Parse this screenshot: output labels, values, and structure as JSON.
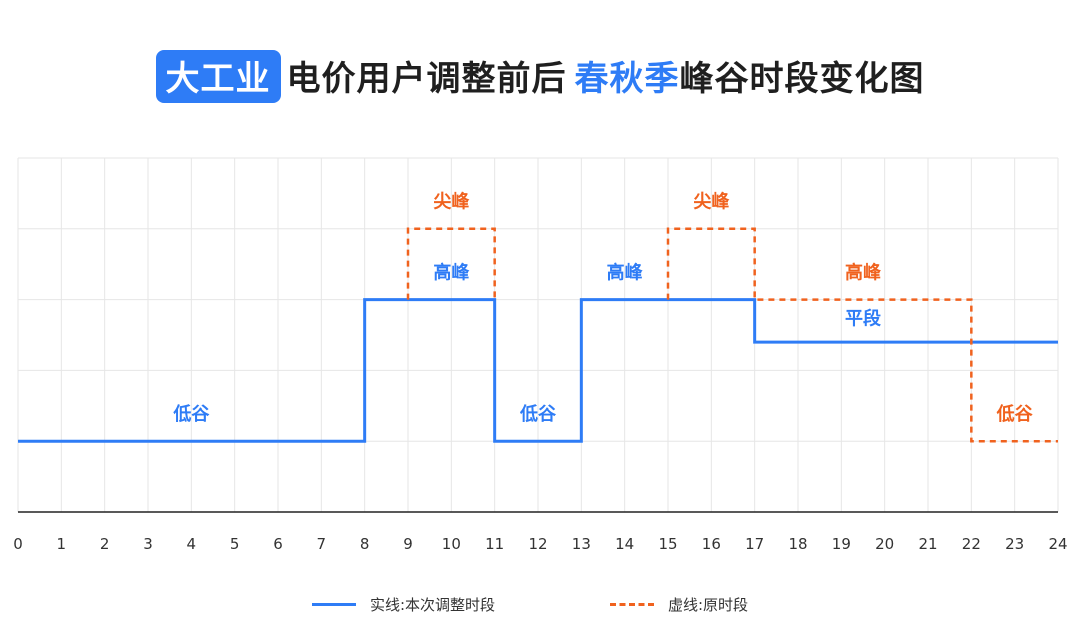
{
  "title": {
    "badge": "大工业",
    "middle": "电价用户调整前后",
    "highlight": "春秋季",
    "rest": "峰谷时段变化图"
  },
  "colors": {
    "new": "#2e7cf6",
    "old": "#f0621e",
    "grid": "#e6e6e6",
    "axis": "#222222"
  },
  "chart_data": {
    "type": "line",
    "xlim": [
      0,
      24
    ],
    "ylim": [
      0,
      5
    ],
    "x_ticks": [
      "0",
      "1",
      "2",
      "3",
      "4",
      "5",
      "6",
      "7",
      "8",
      "9",
      "10",
      "11",
      "12",
      "13",
      "14",
      "15",
      "16",
      "17",
      "18",
      "19",
      "20",
      "21",
      "22",
      "23",
      "24"
    ],
    "grid": true,
    "series": [
      {
        "name": "实线:本次调整时段",
        "style": "solid",
        "color": "#2e7cf6",
        "steps": [
          {
            "x": 0,
            "y": 1
          },
          {
            "x": 8,
            "y": 3
          },
          {
            "x": 11,
            "y": 1
          },
          {
            "x": 13,
            "y": 3
          },
          {
            "x": 17,
            "y": 2.4
          },
          {
            "x": 24,
            "y": 2.4
          }
        ]
      },
      {
        "name": "虚线:原时段",
        "style": "dashed",
        "color": "#f0621e",
        "segments": [
          [
            [
              9,
              3
            ],
            [
              9,
              4
            ],
            [
              11,
              4
            ],
            [
              11,
              3
            ]
          ],
          [
            [
              15,
              3
            ],
            [
              15,
              4
            ],
            [
              17,
              4
            ],
            [
              17,
              3
            ],
            [
              22,
              3
            ],
            [
              22,
              1
            ],
            [
              24,
              1
            ]
          ]
        ]
      }
    ],
    "annotations": [
      {
        "text": "尖峰",
        "x": 10,
        "y": 4.4,
        "color": "#f0621e"
      },
      {
        "text": "尖峰",
        "x": 16,
        "y": 4.4,
        "color": "#f0621e"
      },
      {
        "text": "高峰",
        "x": 10,
        "y": 3.4,
        "color": "#2e7cf6"
      },
      {
        "text": "高峰",
        "x": 14,
        "y": 3.4,
        "color": "#2e7cf6"
      },
      {
        "text": "高峰",
        "x": 19.5,
        "y": 3.4,
        "color": "#f0621e"
      },
      {
        "text": "平段",
        "x": 19.5,
        "y": 2.75,
        "color": "#2e7cf6"
      },
      {
        "text": "低谷",
        "x": 4,
        "y": 1.4,
        "color": "#2e7cf6"
      },
      {
        "text": "低谷",
        "x": 12,
        "y": 1.4,
        "color": "#2e7cf6"
      },
      {
        "text": "低谷",
        "x": 23,
        "y": 1.4,
        "color": "#f0621e"
      }
    ],
    "legend": [
      {
        "label": "实线:本次调整时段",
        "style": "solid"
      },
      {
        "label": "虚线:原时段",
        "style": "dashed"
      }
    ],
    "legend_position": "bottom"
  }
}
